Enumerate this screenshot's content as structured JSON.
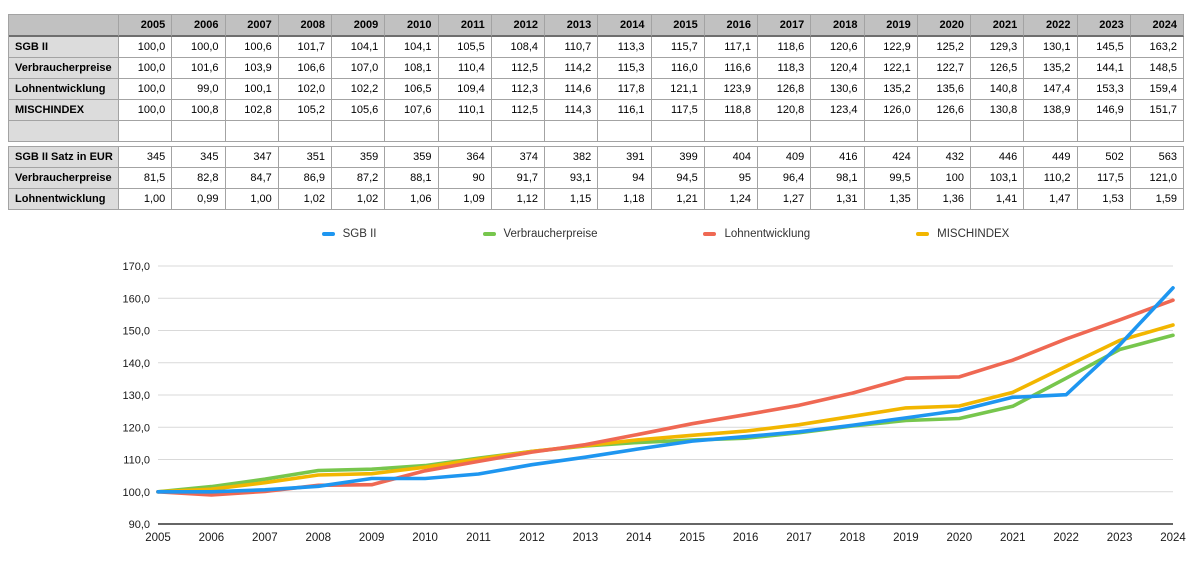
{
  "table": {
    "years": [
      "2005",
      "2006",
      "2007",
      "2008",
      "2009",
      "2010",
      "2011",
      "2012",
      "2013",
      "2014",
      "2015",
      "2016",
      "2017",
      "2018",
      "2019",
      "2020",
      "2021",
      "2022",
      "2023",
      "2024"
    ],
    "index_rows": [
      {
        "label": "SGB II",
        "values": [
          "100,0",
          "100,0",
          "100,6",
          "101,7",
          "104,1",
          "104,1",
          "105,5",
          "108,4",
          "110,7",
          "113,3",
          "115,7",
          "117,1",
          "118,6",
          "120,6",
          "122,9",
          "125,2",
          "129,3",
          "130,1",
          "145,5",
          "163,2"
        ]
      },
      {
        "label": "Verbraucherpreise",
        "values": [
          "100,0",
          "101,6",
          "103,9",
          "106,6",
          "107,0",
          "108,1",
          "110,4",
          "112,5",
          "114,2",
          "115,3",
          "116,0",
          "116,6",
          "118,3",
          "120,4",
          "122,1",
          "122,7",
          "126,5",
          "135,2",
          "144,1",
          "148,5"
        ]
      },
      {
        "label": "Lohnentwicklung",
        "values": [
          "100,0",
          "99,0",
          "100,1",
          "102,0",
          "102,2",
          "106,5",
          "109,4",
          "112,3",
          "114,6",
          "117,8",
          "121,1",
          "123,9",
          "126,8",
          "130,6",
          "135,2",
          "135,6",
          "140,8",
          "147,4",
          "153,3",
          "159,4"
        ]
      },
      {
        "label": "MISCHINDEX",
        "values": [
          "100,0",
          "100,8",
          "102,8",
          "105,2",
          "105,6",
          "107,6",
          "110,1",
          "112,5",
          "114,3",
          "116,1",
          "117,5",
          "118,8",
          "120,8",
          "123,4",
          "126,0",
          "126,6",
          "130,8",
          "138,9",
          "146,9",
          "151,7"
        ]
      }
    ],
    "spacer_row": {
      "label": ""
    },
    "value_rows": [
      {
        "label": "SGB II Satz in EUR",
        "values": [
          "345",
          "345",
          "347",
          "351",
          "359",
          "359",
          "364",
          "374",
          "382",
          "391",
          "399",
          "404",
          "409",
          "416",
          "424",
          "432",
          "446",
          "449",
          "502",
          "563"
        ]
      },
      {
        "label": "Verbraucherpreise",
        "values": [
          "81,5",
          "82,8",
          "84,7",
          "86,9",
          "87,2",
          "88,1",
          "90",
          "91,7",
          "93,1",
          "94",
          "94,5",
          "95",
          "96,4",
          "98,1",
          "99,5",
          "100",
          "103,1",
          "110,2",
          "117,5",
          "121,0"
        ]
      },
      {
        "label": "Lohnentwicklung",
        "values": [
          "1,00",
          "0,99",
          "1,00",
          "1,02",
          "1,02",
          "1,06",
          "1,09",
          "1,12",
          "1,15",
          "1,18",
          "1,21",
          "1,24",
          "1,27",
          "1,31",
          "1,35",
          "1,36",
          "1,41",
          "1,47",
          "1,53",
          "1,59"
        ]
      }
    ]
  },
  "chart_data": {
    "type": "line",
    "title": "",
    "x": [
      2005,
      2006,
      2007,
      2008,
      2009,
      2010,
      2011,
      2012,
      2013,
      2014,
      2015,
      2016,
      2017,
      2018,
      2019,
      2020,
      2021,
      2022,
      2023,
      2024
    ],
    "series": [
      {
        "name": "SGB II",
        "color": "#1E96F0",
        "values": [
          100.0,
          100.0,
          100.6,
          101.7,
          104.1,
          104.1,
          105.5,
          108.4,
          110.7,
          113.3,
          115.7,
          117.1,
          118.6,
          120.6,
          122.9,
          125.2,
          129.3,
          130.1,
          145.5,
          163.2
        ]
      },
      {
        "name": "Verbraucherpreise",
        "color": "#77C64D",
        "values": [
          100.0,
          101.6,
          103.9,
          106.6,
          107.0,
          108.1,
          110.4,
          112.5,
          114.2,
          115.3,
          116.0,
          116.6,
          118.3,
          120.4,
          122.1,
          122.7,
          126.5,
          135.2,
          144.1,
          148.5
        ]
      },
      {
        "name": "Lohnentwicklung",
        "color": "#EF6853",
        "values": [
          100.0,
          99.0,
          100.1,
          102.0,
          102.2,
          106.5,
          109.4,
          112.3,
          114.6,
          117.8,
          121.1,
          123.9,
          126.8,
          130.6,
          135.2,
          135.6,
          140.8,
          147.4,
          153.3,
          159.4
        ]
      },
      {
        "name": "MISCHINDEX",
        "color": "#F2B600",
        "values": [
          100.0,
          100.8,
          102.8,
          105.2,
          105.6,
          107.6,
          110.1,
          112.5,
          114.3,
          116.1,
          117.5,
          118.8,
          120.8,
          123.4,
          126.0,
          126.6,
          130.8,
          138.9,
          146.9,
          151.7
        ]
      }
    ],
    "z_order": [
      1,
      3,
      2,
      0
    ],
    "ylim": [
      90,
      170
    ],
    "ytick_step": 10,
    "y_tick_labels": [
      "90,0",
      "100,0",
      "110,0",
      "120,0",
      "130,0",
      "140,0",
      "150,0",
      "160,0",
      "170,0"
    ],
    "grid": true,
    "legend_position": "top",
    "colors": {
      "grid_line": "#d9d9d9",
      "axis_line": "#333333",
      "header_bg": "#c1c1c1",
      "label_bg": "#dcdcdc",
      "table_border": "#a3a3a3"
    }
  }
}
